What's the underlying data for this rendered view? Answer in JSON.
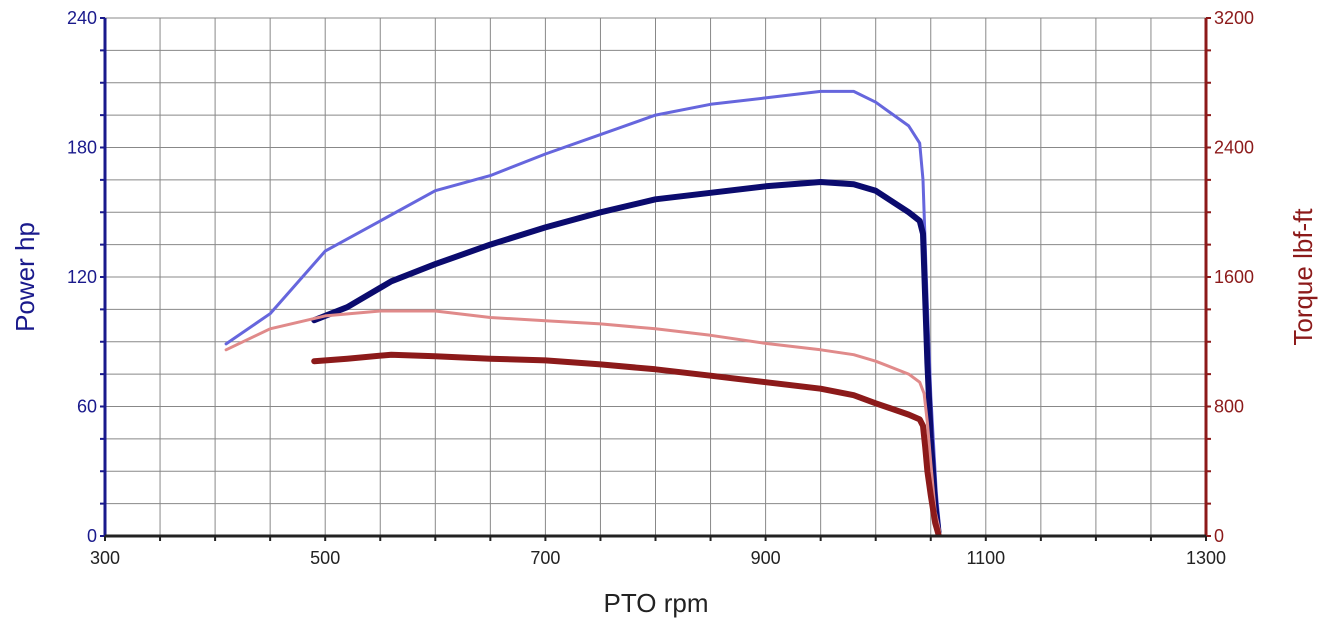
{
  "chart_data": {
    "type": "line",
    "title": "",
    "xlabel": "PTO rpm",
    "ylabel_left": "Power hp",
    "ylabel_right": "Torque lbf-ft",
    "xlim": [
      300,
      1300
    ],
    "ylim_left": [
      0,
      240
    ],
    "ylim_right": [
      0,
      3200
    ],
    "x_ticks": [
      300,
      500,
      700,
      900,
      1100,
      1300
    ],
    "y_left_ticks": [
      0,
      60,
      120,
      180,
      240
    ],
    "y_right_ticks": [
      0,
      800,
      1600,
      2400,
      3200
    ],
    "grid": true,
    "colors": {
      "left_axis": "#1a1a8c",
      "right_axis": "#8c1a1a",
      "grid": "#888888",
      "x_axis": "#222222"
    },
    "series": [
      {
        "axis": "left",
        "color": "#6666dd",
        "style": "thin",
        "points": [
          [
            410,
            89
          ],
          [
            450,
            103
          ],
          [
            500,
            132
          ],
          [
            550,
            146
          ],
          [
            600,
            160
          ],
          [
            650,
            167
          ],
          [
            700,
            177
          ],
          [
            750,
            186
          ],
          [
            800,
            195
          ],
          [
            850,
            200
          ],
          [
            900,
            203
          ],
          [
            950,
            206
          ],
          [
            980,
            206
          ],
          [
            1000,
            201
          ],
          [
            1030,
            190
          ],
          [
            1040,
            182
          ],
          [
            1043,
            165
          ],
          [
            1046,
            120
          ],
          [
            1050,
            65
          ],
          [
            1055,
            20
          ],
          [
            1058,
            4
          ]
        ]
      },
      {
        "axis": "left",
        "color": "#0b0b6e",
        "style": "thick",
        "points": [
          [
            490,
            100
          ],
          [
            520,
            106
          ],
          [
            560,
            118
          ],
          [
            600,
            126
          ],
          [
            650,
            135
          ],
          [
            700,
            143
          ],
          [
            750,
            150
          ],
          [
            800,
            156
          ],
          [
            850,
            159
          ],
          [
            900,
            162
          ],
          [
            950,
            164
          ],
          [
            980,
            163
          ],
          [
            1000,
            160
          ],
          [
            1030,
            150
          ],
          [
            1040,
            146
          ],
          [
            1043,
            140
          ],
          [
            1045,
            110
          ],
          [
            1047,
            80
          ],
          [
            1050,
            45
          ],
          [
            1054,
            15
          ],
          [
            1057,
            2
          ]
        ]
      },
      {
        "axis": "right",
        "color": "#e08a8a",
        "style": "thin",
        "points": [
          [
            410,
            1150
          ],
          [
            450,
            1280
          ],
          [
            500,
            1360
          ],
          [
            550,
            1390
          ],
          [
            600,
            1390
          ],
          [
            650,
            1350
          ],
          [
            700,
            1330
          ],
          [
            750,
            1310
          ],
          [
            800,
            1280
          ],
          [
            850,
            1240
          ],
          [
            900,
            1190
          ],
          [
            950,
            1150
          ],
          [
            980,
            1120
          ],
          [
            1000,
            1080
          ],
          [
            1030,
            1000
          ],
          [
            1040,
            950
          ],
          [
            1044,
            880
          ],
          [
            1047,
            700
          ],
          [
            1050,
            450
          ],
          [
            1054,
            150
          ],
          [
            1058,
            30
          ]
        ]
      },
      {
        "axis": "right",
        "color": "#8c1a1a",
        "style": "thick",
        "points": [
          [
            490,
            1080
          ],
          [
            520,
            1095
          ],
          [
            560,
            1120
          ],
          [
            600,
            1110
          ],
          [
            650,
            1095
          ],
          [
            700,
            1085
          ],
          [
            750,
            1060
          ],
          [
            800,
            1030
          ],
          [
            850,
            990
          ],
          [
            900,
            950
          ],
          [
            950,
            910
          ],
          [
            980,
            870
          ],
          [
            1000,
            820
          ],
          [
            1030,
            750
          ],
          [
            1040,
            720
          ],
          [
            1043,
            680
          ],
          [
            1045,
            550
          ],
          [
            1047,
            400
          ],
          [
            1050,
            250
          ],
          [
            1054,
            80
          ],
          [
            1057,
            10
          ]
        ]
      }
    ]
  }
}
